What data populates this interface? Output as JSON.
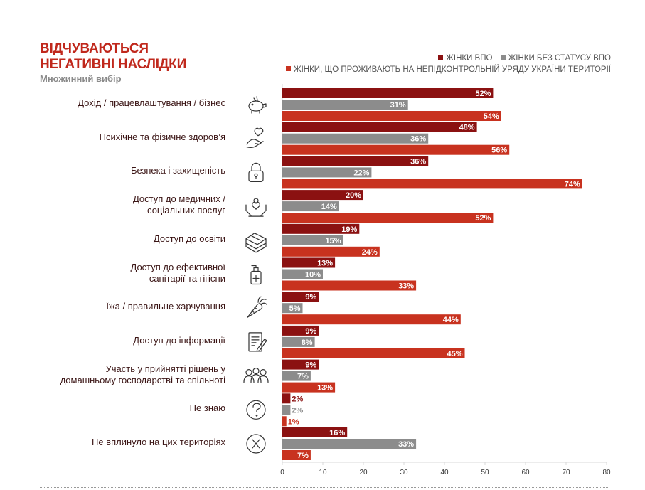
{
  "title_line1": "ВІДЧУВАЮТЬСЯ",
  "title_line2": "НЕГАТИВНІ НАСЛІДКИ",
  "subtitle": "Множинний вибір",
  "colors": {
    "ipv": "#8b1111",
    "nostatus": "#8c8c8c",
    "noncontrolled": "#c8321f"
  },
  "chart_data": {
    "type": "bar",
    "orientation": "horizontal",
    "categories": [
      "Дохід / працевлаштування / бізнес",
      "Психічне та фізичне здоров’я",
      "Безпека і захищеність",
      "Доступ до медичних / соціальних послуг",
      "Доступ до освіти",
      "Доступ до ефективної санітарії та гігієни",
      "Їжа / правильне харчування",
      "Доступ до інформації",
      "Участь у прийнятті рішень у домашньому господарстві та спільноті",
      "Не знаю",
      "Не вплинуло на цих територіях"
    ],
    "category_lines": [
      [
        "Дохід / працевлаштування / бізнес"
      ],
      [
        "Психічне та фізичне здоров’я"
      ],
      [
        "Безпека і захищеність"
      ],
      [
        "Доступ до медичних /",
        "соціальних послуг"
      ],
      [
        "Доступ до освіти"
      ],
      [
        "Доступ до ефективної",
        "санітарії та гігієни"
      ],
      [
        "Їжа / правильне харчування"
      ],
      [
        "Доступ до інформації"
      ],
      [
        "Участь у прийнятті рішень у",
        "домашньому господарстві та спільноті"
      ],
      [
        "Не знаю"
      ],
      [
        "Не вплинуло на цих територіях"
      ]
    ],
    "icons": [
      "piggy-bank-icon",
      "hand-heart-icon",
      "padlock-icon",
      "care-hands-icon",
      "book-icon",
      "sanitizer-icon",
      "carrot-icon",
      "document-pen-icon",
      "people-group-icon",
      "question-icon",
      "x-circle-icon"
    ],
    "series": [
      {
        "name": "ЖІНКИ ВПО",
        "color": "#8b1111",
        "values": [
          52,
          48,
          36,
          20,
          19,
          13,
          9,
          9,
          9,
          2,
          16
        ]
      },
      {
        "name": "ЖІНКИ БЕЗ СТАТУСУ ВПО",
        "color": "#8c8c8c",
        "values": [
          31,
          36,
          22,
          14,
          15,
          10,
          5,
          8,
          7,
          2,
          33
        ]
      },
      {
        "name": "ЖІНКИ, ЩО ПРОЖИВАЮТЬ НА НЕПІДКОНТРОЛЬНІЙ УРЯДУ УКРАЇНИ ТЕРИТОРІЇ",
        "color": "#c8321f",
        "values": [
          54,
          56,
          74,
          52,
          24,
          33,
          44,
          45,
          13,
          1,
          7
        ]
      }
    ],
    "value_suffix": "%",
    "xlim": [
      0,
      80
    ],
    "xticks": [
      0,
      10,
      20,
      30,
      40,
      50,
      60,
      70,
      80
    ],
    "grid": false,
    "legend_position": "top-right"
  }
}
